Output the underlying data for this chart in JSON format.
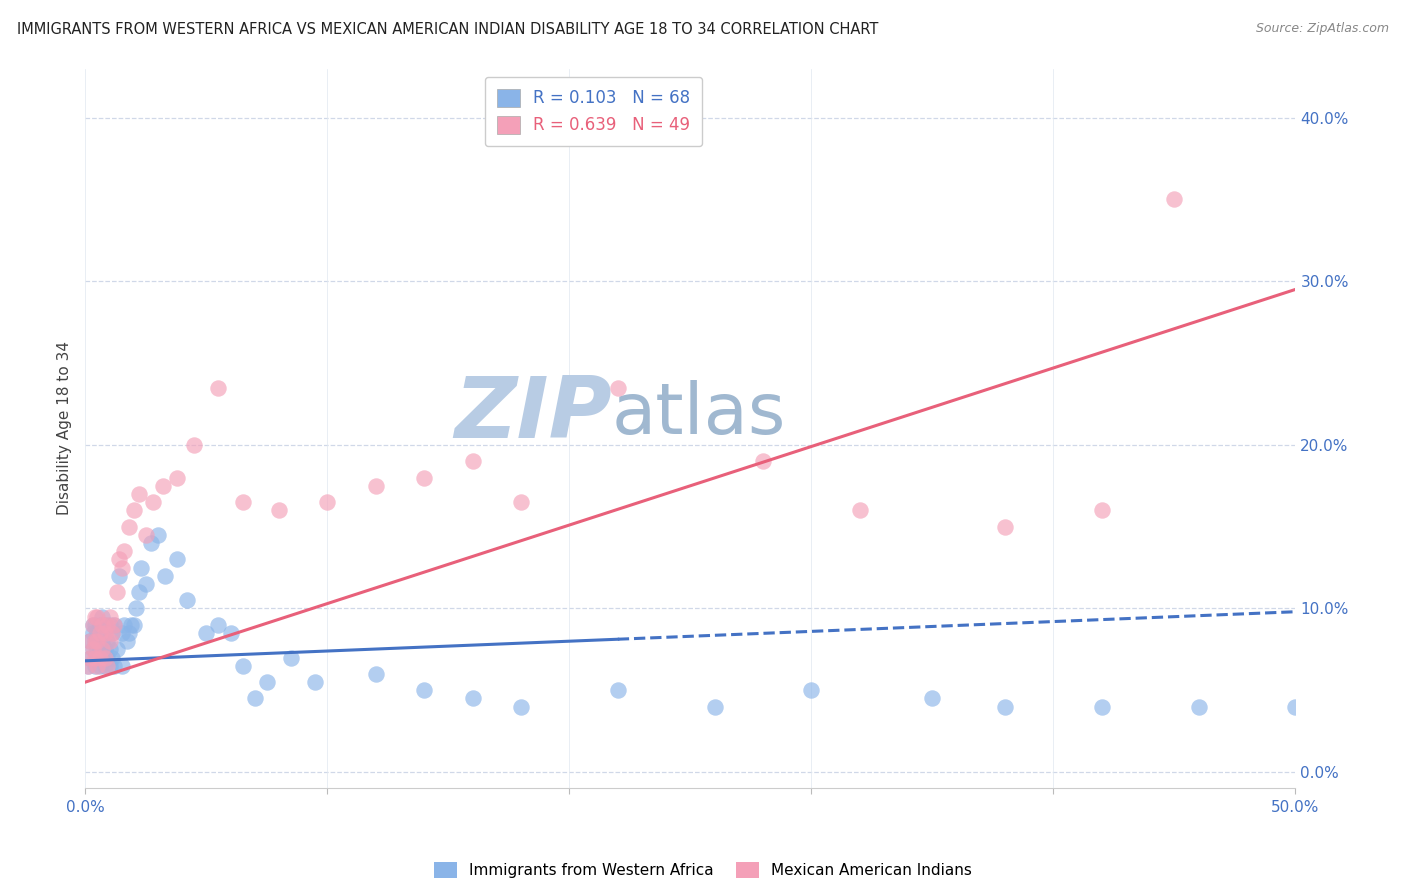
{
  "title": "IMMIGRANTS FROM WESTERN AFRICA VS MEXICAN AMERICAN INDIAN DISABILITY AGE 18 TO 34 CORRELATION CHART",
  "source": "Source: ZipAtlas.com",
  "ylabel": "Disability Age 18 to 34",
  "xlabel_ticks_show": [
    "0.0%",
    "50.0%"
  ],
  "xlabel_vals": [
    0.0,
    0.1,
    0.2,
    0.3,
    0.4,
    0.5
  ],
  "ylabel_ticks": [
    "0.0%",
    "10.0%",
    "20.0%",
    "30.0%",
    "40.0%"
  ],
  "ylabel_vals": [
    0.0,
    0.1,
    0.2,
    0.3,
    0.4
  ],
  "xlim": [
    0.0,
    0.5
  ],
  "ylim": [
    -0.01,
    0.43
  ],
  "R_blue": 0.103,
  "N_blue": 68,
  "R_pink": 0.639,
  "N_pink": 49,
  "blue_color": "#8ab4e8",
  "pink_color": "#f4a0b8",
  "trend_blue_color": "#4472c4",
  "trend_pink_color": "#e8607a",
  "legend_label_blue": "Immigrants from Western Africa",
  "legend_label_pink": "Mexican American Indians",
  "watermark_zip": "ZIP",
  "watermark_atlas": "atlas",
  "watermark_color_zip": "#b8cce4",
  "watermark_color_atlas": "#a0b8d0",
  "blue_scatter_x": [
    0.001,
    0.002,
    0.002,
    0.003,
    0.003,
    0.003,
    0.004,
    0.004,
    0.004,
    0.005,
    0.005,
    0.005,
    0.006,
    0.006,
    0.006,
    0.007,
    0.007,
    0.007,
    0.008,
    0.008,
    0.008,
    0.009,
    0.009,
    0.01,
    0.01,
    0.01,
    0.011,
    0.011,
    0.012,
    0.012,
    0.013,
    0.014,
    0.015,
    0.015,
    0.016,
    0.017,
    0.018,
    0.019,
    0.02,
    0.021,
    0.022,
    0.023,
    0.025,
    0.027,
    0.03,
    0.033,
    0.038,
    0.042,
    0.05,
    0.055,
    0.06,
    0.065,
    0.07,
    0.075,
    0.085,
    0.095,
    0.12,
    0.14,
    0.16,
    0.18,
    0.22,
    0.26,
    0.3,
    0.35,
    0.38,
    0.42,
    0.46,
    0.5
  ],
  "blue_scatter_y": [
    0.065,
    0.07,
    0.08,
    0.075,
    0.085,
    0.09,
    0.065,
    0.08,
    0.09,
    0.07,
    0.075,
    0.085,
    0.065,
    0.075,
    0.09,
    0.07,
    0.08,
    0.095,
    0.065,
    0.075,
    0.09,
    0.07,
    0.08,
    0.065,
    0.075,
    0.09,
    0.07,
    0.085,
    0.065,
    0.09,
    0.075,
    0.12,
    0.065,
    0.085,
    0.09,
    0.08,
    0.085,
    0.09,
    0.09,
    0.1,
    0.11,
    0.125,
    0.115,
    0.14,
    0.145,
    0.12,
    0.13,
    0.105,
    0.085,
    0.09,
    0.085,
    0.065,
    0.045,
    0.055,
    0.07,
    0.055,
    0.06,
    0.05,
    0.045,
    0.04,
    0.05,
    0.04,
    0.05,
    0.045,
    0.04,
    0.04,
    0.04,
    0.04
  ],
  "pink_scatter_x": [
    0.001,
    0.002,
    0.002,
    0.003,
    0.003,
    0.004,
    0.004,
    0.004,
    0.005,
    0.005,
    0.005,
    0.006,
    0.006,
    0.007,
    0.007,
    0.008,
    0.008,
    0.009,
    0.009,
    0.01,
    0.01,
    0.011,
    0.012,
    0.013,
    0.014,
    0.015,
    0.016,
    0.018,
    0.02,
    0.022,
    0.025,
    0.028,
    0.032,
    0.038,
    0.045,
    0.055,
    0.065,
    0.08,
    0.1,
    0.12,
    0.14,
    0.16,
    0.18,
    0.22,
    0.28,
    0.32,
    0.38,
    0.42,
    0.45
  ],
  "pink_scatter_y": [
    0.065,
    0.07,
    0.08,
    0.075,
    0.09,
    0.07,
    0.08,
    0.095,
    0.065,
    0.08,
    0.095,
    0.07,
    0.085,
    0.075,
    0.09,
    0.07,
    0.085,
    0.065,
    0.09,
    0.08,
    0.095,
    0.085,
    0.09,
    0.11,
    0.13,
    0.125,
    0.135,
    0.15,
    0.16,
    0.17,
    0.145,
    0.165,
    0.175,
    0.18,
    0.2,
    0.235,
    0.165,
    0.16,
    0.165,
    0.175,
    0.18,
    0.19,
    0.165,
    0.235,
    0.19,
    0.16,
    0.15,
    0.16,
    0.35
  ],
  "blue_trend_x": [
    0.0,
    0.22
  ],
  "blue_trend_solid_end": 0.22,
  "blue_trend_dash_start": 0.22,
  "blue_trend_y_at_0": 0.068,
  "blue_trend_y_at_05": 0.098,
  "pink_trend_y_at_0": 0.055,
  "pink_trend_y_at_05": 0.295
}
